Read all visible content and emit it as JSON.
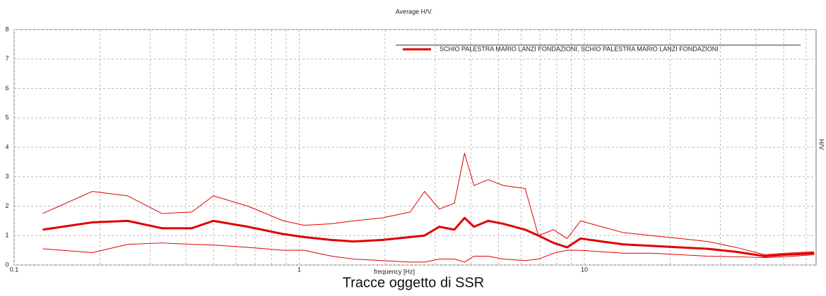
{
  "chart_data": {
    "type": "line",
    "title": "Average H/V.",
    "x_label": "frequency [Hz]",
    "y_label": "H/V",
    "caption": "Tracce  oggetto di SSR",
    "x_scale": "log",
    "grid": true,
    "legend_position": "top-right",
    "xlim": [
      0.1,
      65
    ],
    "xticks": [
      0.1,
      1,
      10
    ],
    "xminorticks": [
      0.2,
      0.3,
      0.4,
      0.5,
      0.6,
      0.7,
      0.8,
      0.9,
      2,
      3,
      4,
      5,
      6,
      7,
      8,
      9,
      20,
      30,
      40,
      50,
      60
    ],
    "ylim": [
      0,
      8
    ],
    "yticks": [
      0,
      1,
      2,
      3,
      4,
      5,
      6,
      7,
      8
    ],
    "x": [
      0.126,
      0.188,
      0.25,
      0.33,
      0.42,
      0.5,
      0.66,
      0.88,
      1.04,
      1.3,
      1.55,
      1.95,
      2.45,
      2.75,
      3.1,
      3.5,
      3.8,
      4.1,
      4.6,
      5.2,
      6.2,
      6.9,
      7.8,
      8.7,
      9.7,
      11.5,
      13.7,
      17.2,
      21.6,
      27,
      34,
      43,
      51,
      64
    ],
    "series": [
      {
        "name": "SCHIO PALESTRA MARIO LANZI  FONDAZIONI, SCHIO PALESTRA MARIO LANZI FONDAZIONI",
        "color": "#e00000",
        "values": [
          1.2,
          1.45,
          1.5,
          1.25,
          1.25,
          1.5,
          1.3,
          1.05,
          0.95,
          0.85,
          0.8,
          0.85,
          0.95,
          1.0,
          1.3,
          1.2,
          1.6,
          1.3,
          1.5,
          1.4,
          1.2,
          1.0,
          0.75,
          0.6,
          0.9,
          0.8,
          0.7,
          0.65,
          0.6,
          0.55,
          0.45,
          0.3,
          0.35,
          0.4
        ]
      },
      {
        "color": "#e00000",
        "values": [
          1.75,
          2.5,
          2.35,
          1.75,
          1.8,
          2.35,
          2.0,
          1.5,
          1.35,
          1.4,
          1.5,
          1.6,
          1.8,
          2.5,
          1.9,
          2.1,
          3.8,
          2.7,
          2.9,
          2.7,
          2.6,
          1.0,
          1.2,
          0.9,
          1.5,
          1.3,
          1.1,
          1.0,
          0.9,
          0.8,
          0.6,
          0.35,
          0.4,
          0.45
        ]
      },
      {
        "color": "#e00000",
        "values": [
          0.55,
          0.42,
          0.7,
          0.75,
          0.7,
          0.68,
          0.6,
          0.5,
          0.5,
          0.3,
          0.2,
          0.15,
          0.1,
          0.1,
          0.2,
          0.2,
          0.1,
          0.3,
          0.3,
          0.2,
          0.15,
          0.2,
          0.4,
          0.5,
          0.5,
          0.45,
          0.4,
          0.4,
          0.35,
          0.3,
          0.28,
          0.25,
          0.28,
          0.35
        ]
      }
    ]
  }
}
